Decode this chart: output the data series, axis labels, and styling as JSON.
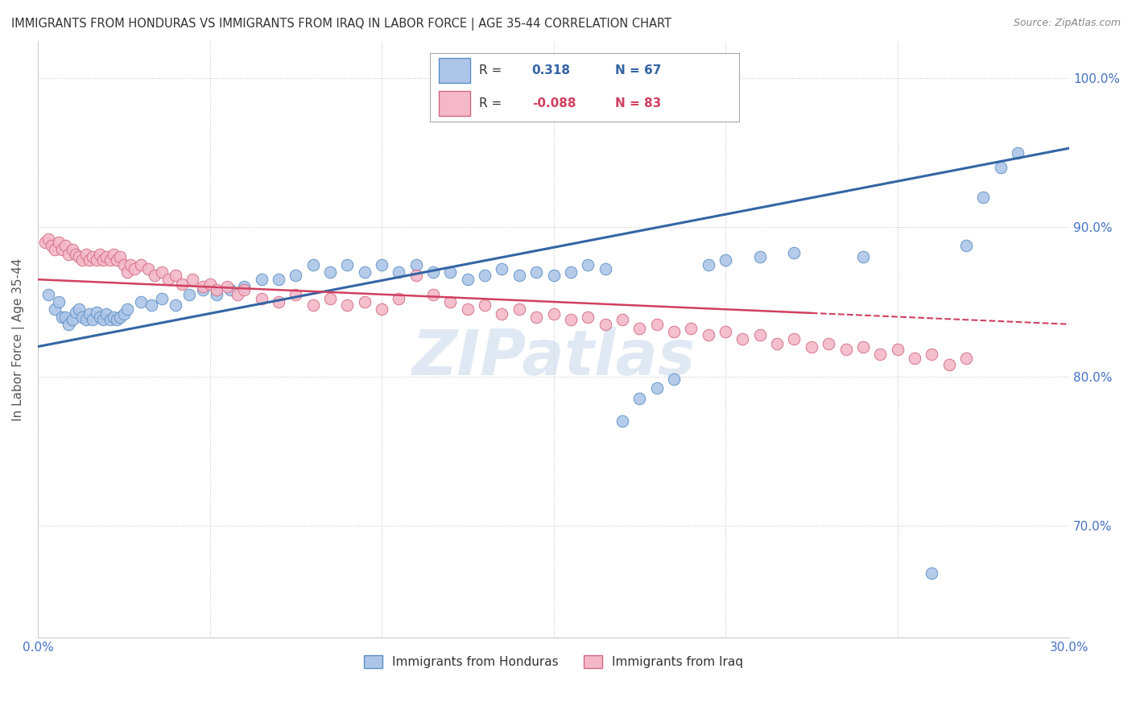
{
  "title": "IMMIGRANTS FROM HONDURAS VS IMMIGRANTS FROM IRAQ IN LABOR FORCE | AGE 35-44 CORRELATION CHART",
  "source": "Source: ZipAtlas.com",
  "ylabel": "In Labor Force | Age 35-44",
  "xlim": [
    0.0,
    0.3
  ],
  "ylim": [
    0.625,
    1.025
  ],
  "xticks": [
    0.0,
    0.05,
    0.1,
    0.15,
    0.2,
    0.25,
    0.3
  ],
  "yticks": [
    0.7,
    0.8,
    0.9,
    1.0
  ],
  "ytick_labels": [
    "70.0%",
    "80.0%",
    "90.0%",
    "100.0%"
  ],
  "honduras_color": "#adc6e8",
  "honduras_edge_color": "#5b8ec4",
  "iraq_color": "#f4b8c8",
  "iraq_edge_color": "#d06880",
  "honduras_line_color": "#3465a4",
  "iraq_line_color": "#d04060",
  "r_honduras": 0.318,
  "n_honduras": 67,
  "r_iraq": -0.088,
  "n_iraq": 83,
  "watermark": "ZIPatlas",
  "legend_honduras_label": "Immigrants from Honduras",
  "legend_iraq_label": "Immigrants from Iraq",
  "honduras_x": [
    0.003,
    0.005,
    0.006,
    0.007,
    0.008,
    0.009,
    0.01,
    0.011,
    0.012,
    0.013,
    0.014,
    0.015,
    0.016,
    0.017,
    0.018,
    0.019,
    0.02,
    0.021,
    0.022,
    0.023,
    0.024,
    0.025,
    0.026,
    0.03,
    0.033,
    0.036,
    0.04,
    0.044,
    0.048,
    0.052,
    0.056,
    0.06,
    0.065,
    0.07,
    0.075,
    0.08,
    0.085,
    0.09,
    0.095,
    0.1,
    0.105,
    0.11,
    0.115,
    0.12,
    0.125,
    0.13,
    0.135,
    0.14,
    0.145,
    0.15,
    0.155,
    0.16,
    0.165,
    0.17,
    0.175,
    0.18,
    0.185,
    0.195,
    0.2,
    0.21,
    0.22,
    0.24,
    0.26,
    0.27,
    0.275,
    0.28,
    0.285
  ],
  "honduras_y": [
    0.855,
    0.845,
    0.85,
    0.84,
    0.84,
    0.835,
    0.838,
    0.843,
    0.845,
    0.84,
    0.838,
    0.842,
    0.838,
    0.843,
    0.84,
    0.838,
    0.842,
    0.838,
    0.84,
    0.838,
    0.84,
    0.842,
    0.845,
    0.85,
    0.848,
    0.852,
    0.848,
    0.855,
    0.858,
    0.855,
    0.858,
    0.86,
    0.865,
    0.865,
    0.868,
    0.875,
    0.87,
    0.875,
    0.87,
    0.875,
    0.87,
    0.875,
    0.87,
    0.87,
    0.865,
    0.868,
    0.872,
    0.868,
    0.87,
    0.868,
    0.87,
    0.875,
    0.872,
    0.77,
    0.785,
    0.792,
    0.798,
    0.875,
    0.878,
    0.88,
    0.883,
    0.88,
    0.668,
    0.888,
    0.92,
    0.94,
    0.95
  ],
  "iraq_x": [
    0.002,
    0.003,
    0.004,
    0.005,
    0.006,
    0.007,
    0.008,
    0.009,
    0.01,
    0.011,
    0.012,
    0.013,
    0.014,
    0.015,
    0.016,
    0.017,
    0.018,
    0.019,
    0.02,
    0.021,
    0.022,
    0.023,
    0.024,
    0.025,
    0.026,
    0.027,
    0.028,
    0.03,
    0.032,
    0.034,
    0.036,
    0.038,
    0.04,
    0.042,
    0.045,
    0.048,
    0.05,
    0.052,
    0.055,
    0.058,
    0.06,
    0.065,
    0.07,
    0.075,
    0.08,
    0.085,
    0.09,
    0.095,
    0.1,
    0.105,
    0.11,
    0.115,
    0.12,
    0.125,
    0.13,
    0.135,
    0.14,
    0.145,
    0.15,
    0.155,
    0.16,
    0.165,
    0.17,
    0.175,
    0.18,
    0.185,
    0.19,
    0.195,
    0.2,
    0.205,
    0.21,
    0.215,
    0.22,
    0.225,
    0.23,
    0.235,
    0.24,
    0.245,
    0.25,
    0.255,
    0.26,
    0.265,
    0.27
  ],
  "iraq_y": [
    0.89,
    0.892,
    0.888,
    0.885,
    0.89,
    0.885,
    0.888,
    0.882,
    0.885,
    0.882,
    0.88,
    0.878,
    0.882,
    0.878,
    0.88,
    0.878,
    0.882,
    0.878,
    0.88,
    0.878,
    0.882,
    0.878,
    0.88,
    0.875,
    0.87,
    0.875,
    0.872,
    0.875,
    0.872,
    0.868,
    0.87,
    0.865,
    0.868,
    0.862,
    0.865,
    0.86,
    0.862,
    0.858,
    0.86,
    0.855,
    0.858,
    0.852,
    0.85,
    0.855,
    0.848,
    0.852,
    0.848,
    0.85,
    0.845,
    0.852,
    0.868,
    0.855,
    0.85,
    0.845,
    0.848,
    0.842,
    0.845,
    0.84,
    0.842,
    0.838,
    0.84,
    0.835,
    0.838,
    0.832,
    0.835,
    0.83,
    0.832,
    0.828,
    0.83,
    0.825,
    0.828,
    0.822,
    0.825,
    0.82,
    0.822,
    0.818,
    0.82,
    0.815,
    0.818,
    0.812,
    0.815,
    0.808,
    0.812
  ]
}
